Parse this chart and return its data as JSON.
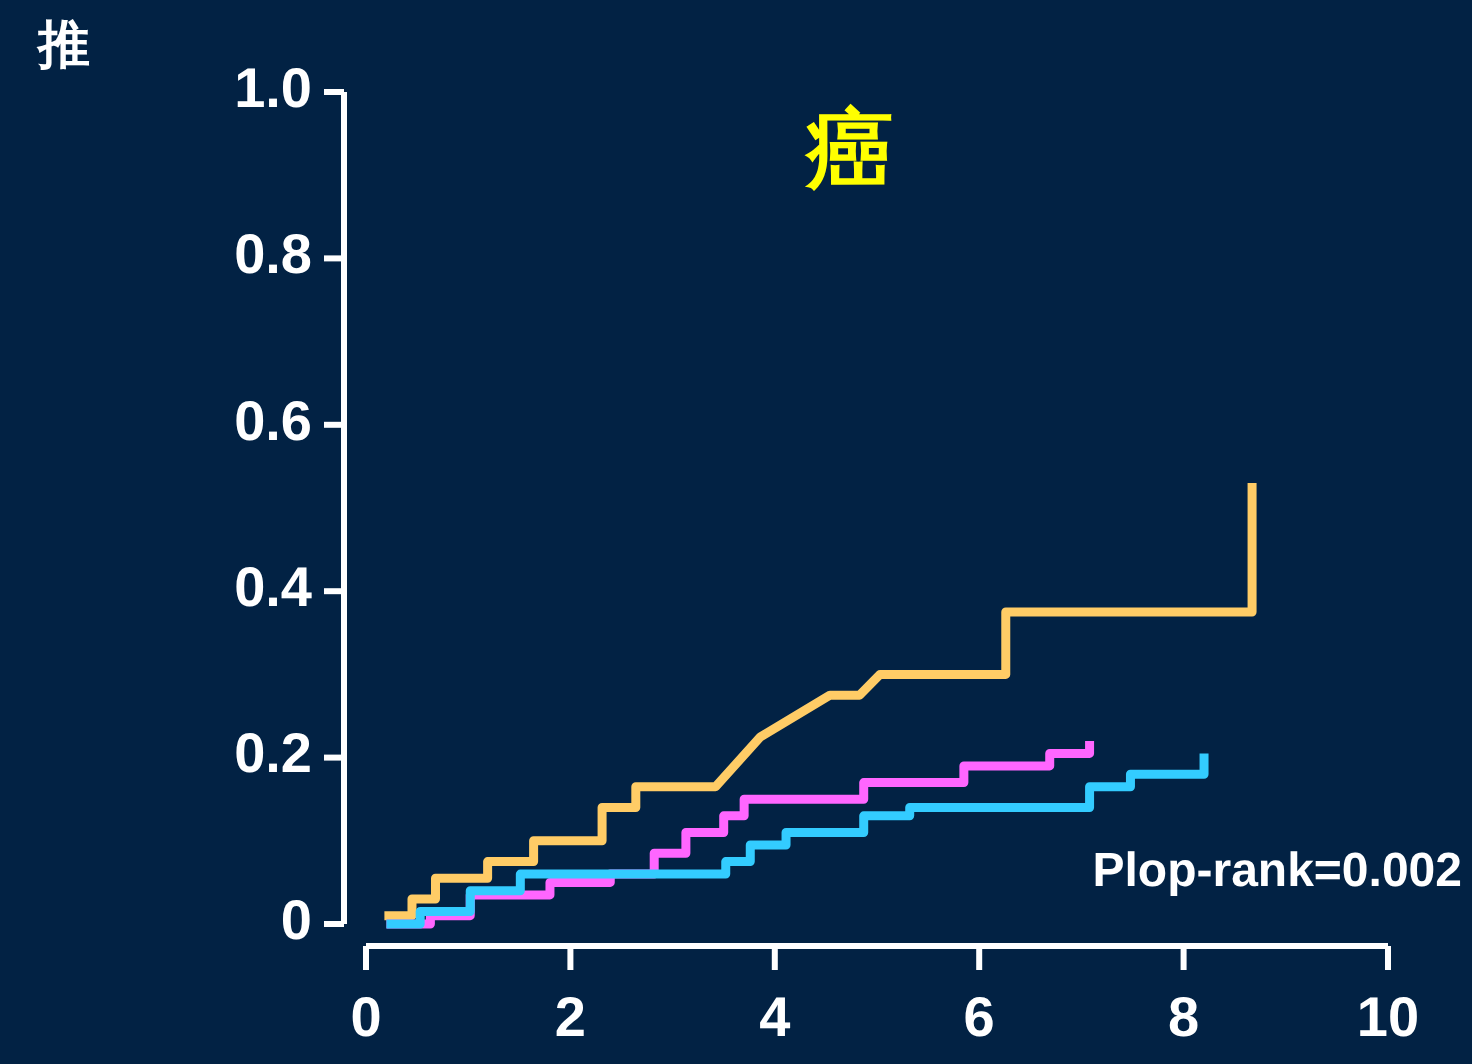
{
  "chart_data": {
    "type": "line",
    "title": "癌",
    "ylabel": "推",
    "annotations": [
      "Plop-rank=0.002"
    ],
    "xlim": [
      0,
      10
    ],
    "xticks": [
      0,
      2,
      4,
      6,
      8,
      10
    ],
    "ylim": [
      0,
      1
    ],
    "yticks": [
      0,
      0.2,
      0.4,
      0.6,
      0.8,
      {
        "value": 1,
        "label": "1.0"
      }
    ],
    "grid": false,
    "marker": "none",
    "line_style": "solid",
    "series": [
      {
        "color": "#ffcc66",
        "x": [
          0.18,
          0.45,
          0.45,
          0.68,
          0.68,
          1.19,
          1.19,
          1.64,
          1.64,
          2.31,
          2.31,
          2.64,
          2.64,
          3.42,
          3.86,
          4.54,
          4.83,
          5.03,
          6.26,
          6.26,
          8.67,
          8.67
        ],
        "values": [
          0.01,
          0.01,
          0.03,
          0.03,
          0.055,
          0.055,
          0.075,
          0.075,
          0.1,
          0.1,
          0.14,
          0.14,
          0.165,
          0.165,
          0.225,
          0.275,
          0.275,
          0.3,
          0.3,
          0.375,
          0.375,
          0.53
        ]
      },
      {
        "color": "#ff66ff",
        "x": [
          0.2,
          0.63,
          0.63,
          1.02,
          1.02,
          1.8,
          1.8,
          2.39,
          2.39,
          2.82,
          2.82,
          3.13,
          3.13,
          3.5,
          3.5,
          3.7,
          3.7,
          4.87,
          4.87,
          5.85,
          5.85,
          6.69,
          6.69,
          7.08,
          7.08
        ],
        "values": [
          0,
          0,
          0.01,
          0.01,
          0.035,
          0.035,
          0.05,
          0.05,
          0.06,
          0.06,
          0.085,
          0.085,
          0.11,
          0.11,
          0.13,
          0.13,
          0.15,
          0.15,
          0.17,
          0.17,
          0.19,
          0.19,
          0.205,
          0.205,
          0.22
        ]
      },
      {
        "color": "#33ccff",
        "x": [
          0.2,
          0.53,
          0.53,
          1.02,
          1.02,
          1.51,
          1.51,
          3.52,
          3.52,
          3.76,
          3.76,
          4.11,
          4.11,
          4.87,
          4.87,
          5.32,
          5.32,
          7.08,
          7.08,
          7.48,
          7.48,
          8.2,
          8.2
        ],
        "values": [
          0,
          0,
          0.015,
          0.015,
          0.04,
          0.04,
          0.06,
          0.06,
          0.075,
          0.075,
          0.095,
          0.095,
          0.11,
          0.11,
          0.13,
          0.13,
          0.14,
          0.14,
          0.165,
          0.165,
          0.18,
          0.18,
          0.205
        ]
      }
    ]
  }
}
